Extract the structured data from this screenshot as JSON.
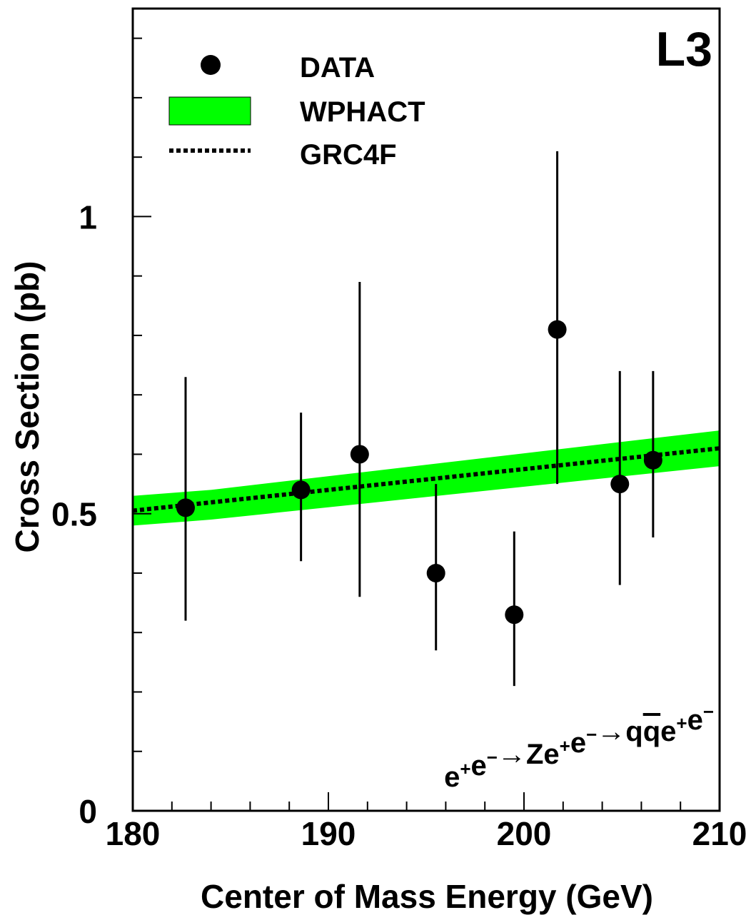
{
  "chart_data": {
    "type": "scatter",
    "experiment_label": "L3",
    "xlabel": "Center of Mass Energy (GeV)",
    "ylabel": "Cross Section (pb)",
    "xlim": [
      180,
      210
    ],
    "ylim": [
      0,
      1.35
    ],
    "x_ticks": [
      {
        "value": 180,
        "label": "180"
      },
      {
        "value": 190,
        "label": "190"
      },
      {
        "value": 200,
        "label": "200"
      },
      {
        "value": 210,
        "label": "210"
      }
    ],
    "y_ticks": [
      {
        "value": 0,
        "label": "0"
      },
      {
        "value": 0.5,
        "label": "0.5"
      },
      {
        "value": 1,
        "label": "1"
      }
    ],
    "process": {
      "parts": [
        {
          "text": "e",
          "sup": "+"
        },
        {
          "text": "e",
          "sup": "−"
        },
        {
          "text": "→"
        },
        {
          "text": "Ze",
          "sup": "+"
        },
        {
          "text": "e",
          "sup": "−"
        },
        {
          "text": "→"
        },
        {
          "text": "q"
        },
        {
          "text": "q",
          "bar": true
        },
        {
          "text": "e",
          "sup": "+"
        },
        {
          "text": "e",
          "sup": "−"
        }
      ]
    },
    "legend": [
      {
        "label": "DATA",
        "kind": "marker"
      },
      {
        "label": "WPHACT",
        "kind": "band"
      },
      {
        "label": "GRC4F",
        "kind": "dotted"
      }
    ],
    "series": [
      {
        "name": "DATA",
        "points": [
          {
            "x": 182.7,
            "y": 0.51,
            "ylow": 0.32,
            "yhigh": 0.73
          },
          {
            "x": 188.6,
            "y": 0.54,
            "ylow": 0.42,
            "yhigh": 0.67
          },
          {
            "x": 191.6,
            "y": 0.6,
            "ylow": 0.36,
            "yhigh": 0.89
          },
          {
            "x": 195.5,
            "y": 0.4,
            "ylow": 0.27,
            "yhigh": 0.55
          },
          {
            "x": 199.5,
            "y": 0.33,
            "ylow": 0.21,
            "yhigh": 0.47
          },
          {
            "x": 201.7,
            "y": 0.81,
            "ylow": 0.55,
            "yhigh": 1.11
          },
          {
            "x": 204.9,
            "y": 0.55,
            "ylow": 0.38,
            "yhigh": 0.74
          },
          {
            "x": 206.6,
            "y": 0.59,
            "ylow": 0.46,
            "yhigh": 0.74
          }
        ]
      },
      {
        "name": "WPHACT",
        "x": [
          180,
          184,
          210
        ],
        "ylow": [
          0.48,
          0.49,
          0.58
        ],
        "yhigh": [
          0.53,
          0.54,
          0.64
        ]
      },
      {
        "name": "GRC4F",
        "x": [
          180,
          210
        ],
        "y": [
          0.505,
          0.61
        ]
      }
    ],
    "colors": {
      "band": "#00ff00",
      "marker": "#000000",
      "line": "#000000"
    }
  }
}
